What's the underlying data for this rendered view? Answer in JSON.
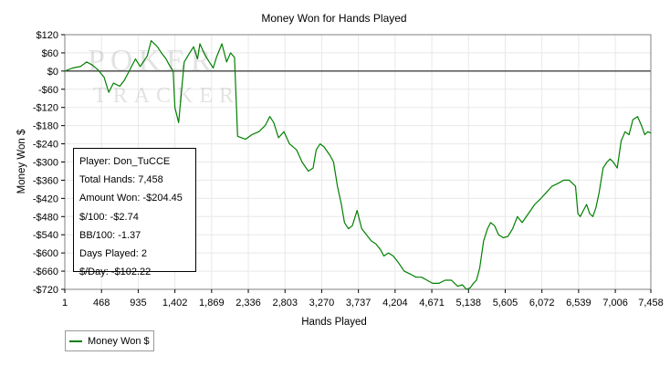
{
  "chart_data": {
    "type": "line",
    "title": "Money Won for Hands Played",
    "xlabel": "Hands Played",
    "ylabel": "Money Won $",
    "xlim": [
      1,
      7458
    ],
    "ylim": [
      -720,
      120
    ],
    "x_ticks": [
      1,
      468,
      935,
      1402,
      1869,
      2336,
      2803,
      3270,
      3737,
      4204,
      4671,
      5138,
      5605,
      6072,
      6539,
      7006,
      7458
    ],
    "x_tick_labels": [
      "1",
      "468",
      "935",
      "1,402",
      "1,869",
      "2,336",
      "2,803",
      "3,270",
      "3,737",
      "4,204",
      "4,671",
      "5,138",
      "5,605",
      "6,072",
      "6,539",
      "7,006",
      "7,458"
    ],
    "y_ticks": [
      120,
      60,
      0,
      -60,
      -120,
      -180,
      -240,
      -300,
      -360,
      -420,
      -480,
      -540,
      -600,
      -660,
      -720
    ],
    "y_tick_labels": [
      "$120",
      "$60",
      "$0",
      "-$60",
      "-$120",
      "-$180",
      "-$240",
      "-$300",
      "-$360",
      "-$420",
      "-$480",
      "-$540",
      "-$600",
      "-$660",
      "-$720"
    ],
    "grid": true,
    "legend_position": "bottom-left",
    "series": [
      {
        "name": "Money Won $",
        "color": "#008000",
        "x": [
          1,
          100,
          200,
          280,
          350,
          420,
          500,
          560,
          620,
          700,
          760,
          820,
          900,
          960,
          1050,
          1100,
          1180,
          1230,
          1290,
          1330,
          1380,
          1402,
          1450,
          1520,
          1590,
          1640,
          1690,
          1720,
          1780,
          1840,
          1890,
          1930,
          2000,
          2060,
          2110,
          2160,
          2200,
          2250,
          2300,
          2380,
          2470,
          2550,
          2610,
          2660,
          2720,
          2790,
          2860,
          2950,
          3020,
          3100,
          3160,
          3200,
          3250,
          3300,
          3380,
          3420,
          3470,
          3520,
          3560,
          3610,
          3660,
          3720,
          3780,
          3840,
          3900,
          3960,
          4020,
          4060,
          4120,
          4180,
          4240,
          4320,
          4400,
          4470,
          4540,
          4610,
          4680,
          4760,
          4840,
          4920,
          5000,
          5060,
          5110,
          5160,
          5200,
          5240,
          5280,
          5330,
          5380,
          5420,
          5470,
          5520,
          5580,
          5640,
          5700,
          5760,
          5820,
          5900,
          5980,
          6060,
          6130,
          6200,
          6280,
          6350,
          6420,
          6500,
          6530,
          6560,
          6600,
          6640,
          6680,
          6720,
          6760,
          6800,
          6850,
          6900,
          6940,
          6980,
          7030,
          7080,
          7130,
          7180,
          7230,
          7290,
          7340,
          7380,
          7420,
          7458
        ],
        "y": [
          0,
          10,
          15,
          30,
          20,
          5,
          -20,
          -70,
          -40,
          -50,
          -30,
          0,
          40,
          15,
          50,
          100,
          80,
          60,
          40,
          20,
          0,
          -120,
          -170,
          30,
          60,
          80,
          40,
          90,
          55,
          30,
          10,
          45,
          90,
          30,
          60,
          45,
          -215,
          -220,
          -225,
          -210,
          -200,
          -180,
          -150,
          -170,
          -220,
          -200,
          -240,
          -260,
          -300,
          -330,
          -320,
          -260,
          -240,
          -250,
          -280,
          -300,
          -380,
          -440,
          -500,
          -520,
          -510,
          -460,
          -520,
          -540,
          -560,
          -570,
          -590,
          -610,
          -600,
          -610,
          -630,
          -660,
          -670,
          -680,
          -680,
          -690,
          -700,
          -700,
          -690,
          -690,
          -710,
          -705,
          -720,
          -715,
          -700,
          -690,
          -650,
          -560,
          -520,
          -500,
          -510,
          -540,
          -550,
          -545,
          -520,
          -480,
          -500,
          -470,
          -440,
          -420,
          -400,
          -380,
          -370,
          -360,
          -360,
          -380,
          -470,
          -480,
          -460,
          -440,
          -470,
          -480,
          -450,
          -400,
          -320,
          -300,
          -290,
          -300,
          -320,
          -230,
          -200,
          -210,
          -160,
          -150,
          -180,
          -210,
          -200,
          -204.45
        ]
      }
    ]
  },
  "stats": {
    "player": "Player: Don_TuCCE",
    "total_hands": "Total Hands: 7,458",
    "amount_won": "Amount Won: -$204.45",
    "per100": "$/100: -$2.74",
    "bb100": "BB/100: -1.37",
    "days_played": "Days Played: 2",
    "per_day": "$/Day: -$102.22"
  },
  "legend": {
    "label": "Money Won $",
    "color": "#008000"
  },
  "watermark": {
    "line1": "POKER",
    "line2": "TRACKER"
  }
}
